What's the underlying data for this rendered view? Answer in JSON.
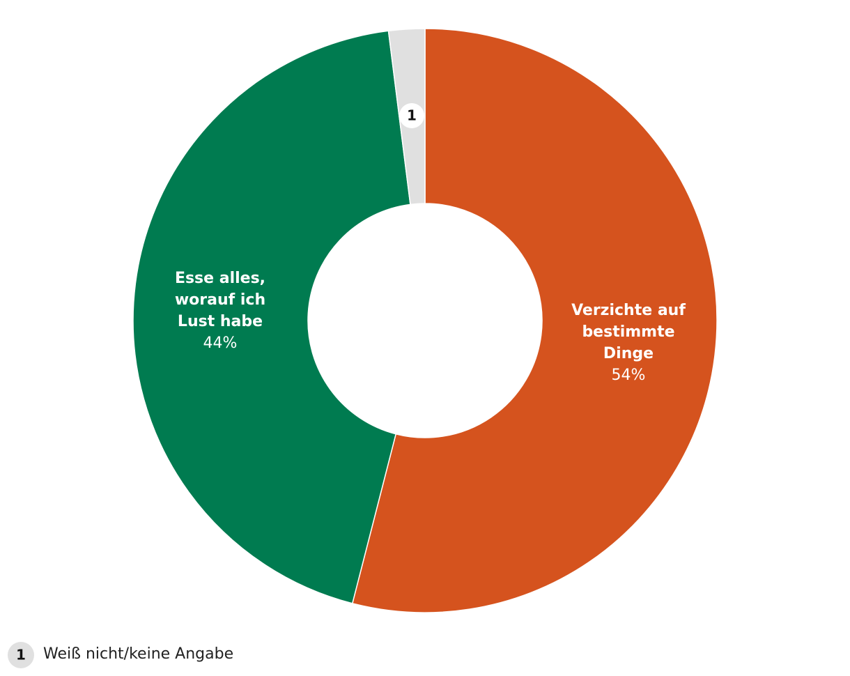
{
  "chart_data": {
    "type": "donut",
    "categories": [
      "Verzichte auf bestimmte Dinge",
      "Esse alles, worauf ich Lust habe",
      "Weiß nicht/keine Angabe"
    ],
    "values": [
      54,
      44,
      2
    ],
    "value_labels": [
      "54%",
      "44%",
      null
    ],
    "colors": [
      "#d5531e",
      "#007b50",
      "#e0e0e0"
    ],
    "footnote_marker": "1"
  }
}
